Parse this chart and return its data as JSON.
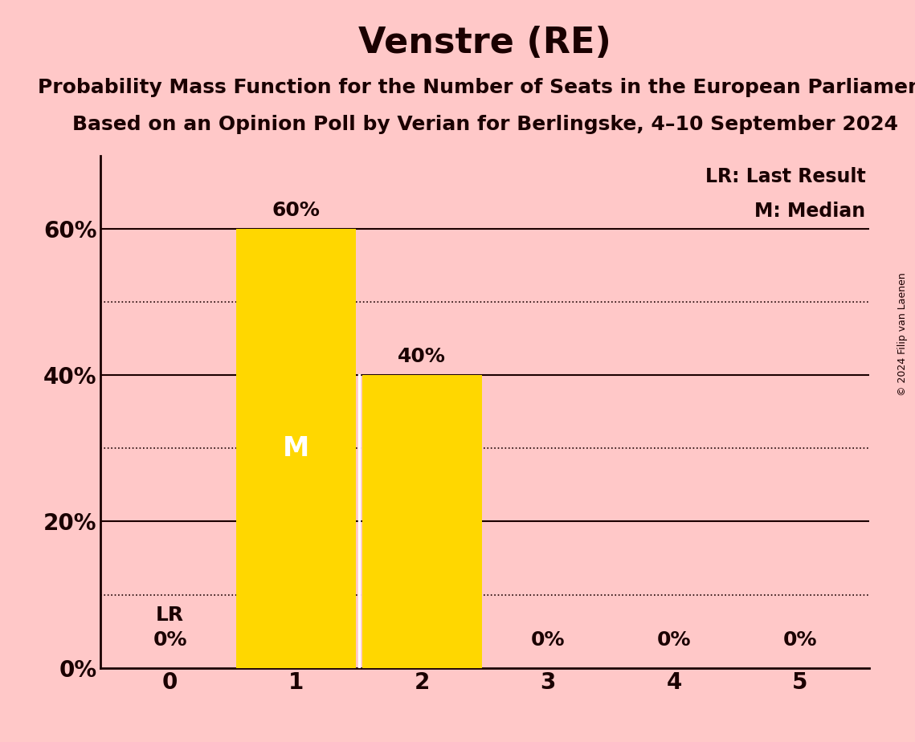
{
  "title": "Venstre (RE)",
  "subtitle1": "Probability Mass Function for the Number of Seats in the European Parliament",
  "subtitle2": "Based on an Opinion Poll by Verian for Berlingske, 4–10 September 2024",
  "copyright": "© 2024 Filip van Laenen",
  "background_color": "#ffc8c8",
  "bar_color": "#FFD700",
  "bar_edge_color": "#1a0000",
  "categories": [
    0,
    1,
    2,
    3,
    4,
    5
  ],
  "values": [
    0.0,
    0.6,
    0.4,
    0.0,
    0.0,
    0.0
  ],
  "labels": [
    "0%",
    "60%",
    "40%",
    "0%",
    "0%",
    "0%"
  ],
  "median": 1,
  "last_result": 0,
  "last_result_value": 0.1,
  "ylim": [
    0,
    0.7
  ],
  "yticks": [
    0.0,
    0.2,
    0.4,
    0.6
  ],
  "ytick_labels": [
    "0%",
    "20%",
    "40%",
    "60%"
  ],
  "dotted_yticks": [
    0.1,
    0.3,
    0.5
  ],
  "title_fontsize": 32,
  "subtitle_fontsize": 18,
  "label_fontsize": 18,
  "axis_fontsize": 20,
  "legend_fontsize": 17,
  "text_color": "#1a0000"
}
